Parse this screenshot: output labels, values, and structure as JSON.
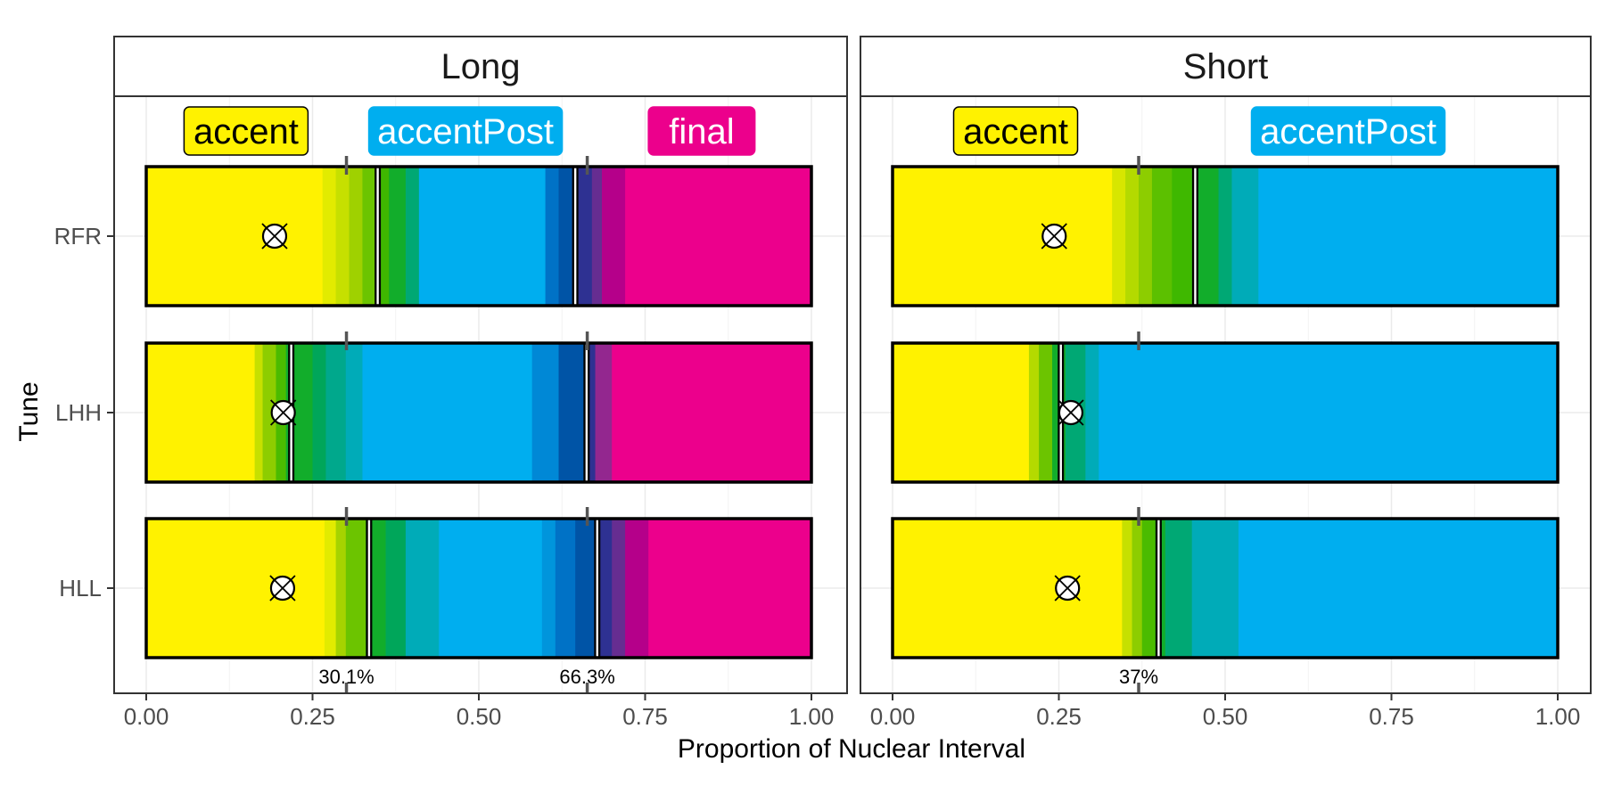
{
  "chart_data": {
    "type": "bar",
    "orientation": "horizontal-stacked-gradient",
    "xlabel": "Proportion of Nuclear Interval",
    "ylabel": "Tune",
    "xlim": [
      0,
      1
    ],
    "x_ticks": [
      "0.00",
      "0.25",
      "0.50",
      "0.75",
      "1.00"
    ],
    "x_tick_values": [
      0,
      0.25,
      0.5,
      0.75,
      1.0
    ],
    "categories": [
      "RFR",
      "LHH",
      "HLL"
    ],
    "grid": true,
    "colors": {
      "accent": "#fff200",
      "accentPost": "#00aeef",
      "final": "#ec008c"
    },
    "panels": [
      {
        "name": "Long",
        "labels": [
          {
            "text": "accent",
            "center": 0.15,
            "fill": "#fff200",
            "text_color": "#000000",
            "border": "#000000"
          },
          {
            "text": "accentPost",
            "center": 0.48,
            "fill": "#00aeef",
            "text_color": "#ffffff",
            "border": "#00aeef"
          },
          {
            "text": "final",
            "center": 0.835,
            "fill": "#ec008c",
            "text_color": "#ffffff",
            "border": "#ec008c"
          }
        ],
        "mean_markers": [
          {
            "value": 0.301,
            "label": "30.1%"
          },
          {
            "value": 0.663,
            "label": "66.3%"
          }
        ],
        "bars": [
          {
            "tune": "RFR",
            "circle": 0.193,
            "boundaries": [
              0.348,
              0.645
            ],
            "segments": [
              {
                "start": 0,
                "end": 0.265,
                "color": "#fff200"
              },
              {
                "start": 0.265,
                "end": 0.285,
                "color": "#e2eb00"
              },
              {
                "start": 0.285,
                "end": 0.305,
                "color": "#c6e000"
              },
              {
                "start": 0.305,
                "end": 0.325,
                "color": "#9fd100"
              },
              {
                "start": 0.325,
                "end": 0.345,
                "color": "#6cc400"
              },
              {
                "start": 0.345,
                "end": 0.365,
                "color": "#3fb800"
              },
              {
                "start": 0.365,
                "end": 0.39,
                "color": "#12ad2b"
              },
              {
                "start": 0.39,
                "end": 0.41,
                "color": "#00a874"
              },
              {
                "start": 0.41,
                "end": 0.6,
                "color": "#00aeef"
              },
              {
                "start": 0.6,
                "end": 0.62,
                "color": "#0072c6"
              },
              {
                "start": 0.62,
                "end": 0.64,
                "color": "#0054a6"
              },
              {
                "start": 0.64,
                "end": 0.67,
                "color": "#2e3192"
              },
              {
                "start": 0.67,
                "end": 0.685,
                "color": "#662d91"
              },
              {
                "start": 0.685,
                "end": 0.72,
                "color": "#b5008a"
              },
              {
                "start": 0.72,
                "end": 1,
                "color": "#ec008c"
              }
            ]
          },
          {
            "tune": "LHH",
            "circle": 0.206,
            "boundaries": [
              0.218,
              0.662
            ],
            "segments": [
              {
                "start": 0,
                "end": 0.163,
                "color": "#fff200"
              },
              {
                "start": 0.163,
                "end": 0.175,
                "color": "#c6e000"
              },
              {
                "start": 0.175,
                "end": 0.195,
                "color": "#8dcd00"
              },
              {
                "start": 0.195,
                "end": 0.21,
                "color": "#4bbb00"
              },
              {
                "start": 0.21,
                "end": 0.25,
                "color": "#12ad2b"
              },
              {
                "start": 0.25,
                "end": 0.27,
                "color": "#00a65a"
              },
              {
                "start": 0.27,
                "end": 0.3,
                "color": "#00a88c"
              },
              {
                "start": 0.3,
                "end": 0.325,
                "color": "#00abb8"
              },
              {
                "start": 0.325,
                "end": 0.58,
                "color": "#00aeef"
              },
              {
                "start": 0.58,
                "end": 0.62,
                "color": "#0088d6"
              },
              {
                "start": 0.62,
                "end": 0.66,
                "color": "#0054a6"
              },
              {
                "start": 0.66,
                "end": 0.675,
                "color": "#2e3192"
              },
              {
                "start": 0.675,
                "end": 0.7,
                "color": "#93278f"
              },
              {
                "start": 0.7,
                "end": 1,
                "color": "#ec008c"
              }
            ]
          },
          {
            "tune": "HLL",
            "circle": 0.205,
            "boundaries": [
              0.335,
              0.678
            ],
            "segments": [
              {
                "start": 0,
                "end": 0.268,
                "color": "#fff200"
              },
              {
                "start": 0.268,
                "end": 0.285,
                "color": "#e2eb00"
              },
              {
                "start": 0.285,
                "end": 0.3,
                "color": "#a6d300"
              },
              {
                "start": 0.3,
                "end": 0.33,
                "color": "#6cc400"
              },
              {
                "start": 0.33,
                "end": 0.36,
                "color": "#12ad2b"
              },
              {
                "start": 0.36,
                "end": 0.39,
                "color": "#00a65a"
              },
              {
                "start": 0.39,
                "end": 0.44,
                "color": "#00abb8"
              },
              {
                "start": 0.44,
                "end": 0.595,
                "color": "#00aeef"
              },
              {
                "start": 0.595,
                "end": 0.615,
                "color": "#0095dc"
              },
              {
                "start": 0.615,
                "end": 0.645,
                "color": "#0072c6"
              },
              {
                "start": 0.645,
                "end": 0.675,
                "color": "#0054a6"
              },
              {
                "start": 0.675,
                "end": 0.7,
                "color": "#2e3192"
              },
              {
                "start": 0.7,
                "end": 0.72,
                "color": "#662d91"
              },
              {
                "start": 0.72,
                "end": 0.755,
                "color": "#b5008a"
              },
              {
                "start": 0.755,
                "end": 1,
                "color": "#ec008c"
              }
            ]
          }
        ]
      },
      {
        "name": "Short",
        "labels": [
          {
            "text": "accent",
            "center": 0.185,
            "fill": "#fff200",
            "text_color": "#000000",
            "border": "#000000"
          },
          {
            "text": "accentPost",
            "center": 0.685,
            "fill": "#00aeef",
            "text_color": "#ffffff",
            "border": "#00aeef"
          }
        ],
        "mean_markers": [
          {
            "value": 0.37,
            "label": "37%"
          }
        ],
        "bars": [
          {
            "tune": "RFR",
            "circle": 0.243,
            "boundaries": [
              0.455
            ],
            "segments": [
              {
                "start": 0,
                "end": 0.33,
                "color": "#fff200"
              },
              {
                "start": 0.33,
                "end": 0.35,
                "color": "#d7e600"
              },
              {
                "start": 0.35,
                "end": 0.37,
                "color": "#b4da00"
              },
              {
                "start": 0.37,
                "end": 0.39,
                "color": "#8dcd00"
              },
              {
                "start": 0.39,
                "end": 0.42,
                "color": "#5cc000"
              },
              {
                "start": 0.42,
                "end": 0.45,
                "color": "#3fb800"
              },
              {
                "start": 0.45,
                "end": 0.49,
                "color": "#12ad2b"
              },
              {
                "start": 0.49,
                "end": 0.51,
                "color": "#00a874"
              },
              {
                "start": 0.51,
                "end": 0.55,
                "color": "#00abb8"
              },
              {
                "start": 0.55,
                "end": 1,
                "color": "#00aeef"
              }
            ]
          },
          {
            "tune": "LHH",
            "circle": 0.268,
            "boundaries": [
              0.253
            ],
            "segments": [
              {
                "start": 0,
                "end": 0.205,
                "color": "#fff200"
              },
              {
                "start": 0.205,
                "end": 0.22,
                "color": "#b4da00"
              },
              {
                "start": 0.22,
                "end": 0.24,
                "color": "#6cc400"
              },
              {
                "start": 0.24,
                "end": 0.26,
                "color": "#12ad2b"
              },
              {
                "start": 0.26,
                "end": 0.29,
                "color": "#00a874"
              },
              {
                "start": 0.29,
                "end": 0.31,
                "color": "#00abb8"
              },
              {
                "start": 0.31,
                "end": 1,
                "color": "#00aeef"
              }
            ]
          },
          {
            "tune": "HLL",
            "circle": 0.263,
            "boundaries": [
              0.4
            ],
            "segments": [
              {
                "start": 0,
                "end": 0.345,
                "color": "#fff200"
              },
              {
                "start": 0.345,
                "end": 0.36,
                "color": "#c6e000"
              },
              {
                "start": 0.36,
                "end": 0.375,
                "color": "#8dcd00"
              },
              {
                "start": 0.375,
                "end": 0.395,
                "color": "#4bbb00"
              },
              {
                "start": 0.395,
                "end": 0.41,
                "color": "#12ad2b"
              },
              {
                "start": 0.41,
                "end": 0.45,
                "color": "#00a874"
              },
              {
                "start": 0.45,
                "end": 0.52,
                "color": "#00abb8"
              },
              {
                "start": 0.52,
                "end": 1,
                "color": "#00aeef"
              }
            ]
          }
        ]
      }
    ]
  }
}
